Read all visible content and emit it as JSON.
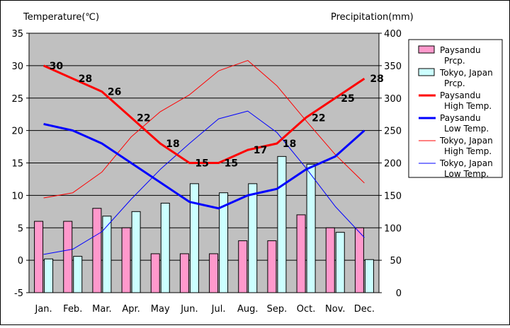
{
  "chart_data": {
    "type": "bar+line",
    "y_left_title": "Temperature(℃)",
    "y_right_title": "Precipitation(mm)",
    "y_left_range": [
      -5,
      35
    ],
    "y_left_ticks": [
      -5,
      0,
      5,
      10,
      15,
      20,
      25,
      30,
      35
    ],
    "y_right_range": [
      0,
      400
    ],
    "y_right_ticks": [
      0,
      50,
      100,
      150,
      200,
      250,
      300,
      350,
      400
    ],
    "grid": true,
    "categories": [
      "Jan.",
      "Feb.",
      "Mar.",
      "Apr.",
      "May",
      "Jun.",
      "Jul.",
      "Aug.",
      "Sep.",
      "Oct.",
      "Nov.",
      "Dec."
    ],
    "bar_series": [
      {
        "name": "Paysandu Prcp.",
        "legend_lines": [
          "Paysandu",
          "Prcp."
        ],
        "color": "#ff99cc",
        "values": [
          110,
          110,
          130,
          100,
          60,
          60,
          60,
          80,
          80,
          120,
          100,
          100
        ]
      },
      {
        "name": "Tokyo, Japan Prcp.",
        "legend_lines": [
          "Tokyo, Japan",
          "Prcp."
        ],
        "color": "#ccffff",
        "values": [
          52,
          56,
          118,
          125,
          138,
          168,
          154,
          168,
          210,
          198,
          93,
          51
        ]
      }
    ],
    "line_series": [
      {
        "name": "Paysandu High Temp.",
        "legend_lines": [
          "Paysandu",
          "High Temp."
        ],
        "color": "#ff0000",
        "width": 3,
        "values": [
          30,
          28,
          26,
          22,
          18,
          15,
          15,
          17,
          18,
          22,
          25,
          28
        ],
        "labels": [
          "30",
          "28",
          "26",
          "22",
          "18",
          "15",
          "15",
          "17",
          "18",
          "22",
          "25",
          "28"
        ]
      },
      {
        "name": "Paysandu Low Temp.",
        "legend_lines": [
          "Paysandu",
          "Low Temp."
        ],
        "color": "#0000ff",
        "width": 3,
        "values": [
          21,
          20,
          18,
          15,
          12,
          9,
          8,
          10,
          11,
          14,
          16,
          20
        ]
      },
      {
        "name": "Tokyo, Japan High Temp.",
        "legend_lines": [
          "Tokyo, Japan",
          "High Temp."
        ],
        "color": "#ff0000",
        "width": 1,
        "values": [
          9.6,
          10.4,
          13.6,
          19,
          22.9,
          25.5,
          29.2,
          30.8,
          26.9,
          21.5,
          16.3,
          11.9
        ]
      },
      {
        "name": "Tokyo, Japan Low Temp.",
        "legend_lines": [
          "Tokyo, Japan",
          "Low Temp."
        ],
        "color": "#0000ff",
        "width": 1,
        "values": [
          0.9,
          1.7,
          4.4,
          9.4,
          14,
          18,
          21.8,
          23,
          19.7,
          14.2,
          8.3,
          3.5
        ]
      }
    ],
    "colors": {
      "plot_bg": "#c0c0c0",
      "bar_stroke": "#000000"
    }
  }
}
